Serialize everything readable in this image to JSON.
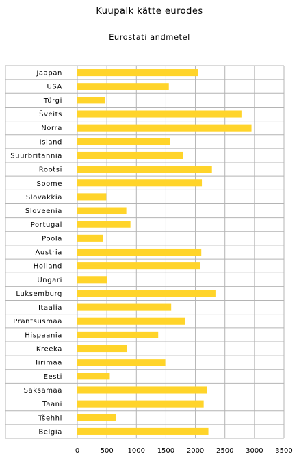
{
  "chart_data": {
    "type": "bar",
    "orientation": "horizontal",
    "title": "Kuupalk kätte eurodes",
    "subtitle": "Eurostati andmetel",
    "xlabel": "",
    "ylabel": "",
    "xlim": [
      0,
      3500
    ],
    "xticks": [
      0,
      500,
      1000,
      1500,
      2000,
      2500,
      3000,
      3500
    ],
    "grid": true,
    "legend": "none",
    "bar_color": "#FFD42A",
    "categories": [
      "Jaapan",
      "USA",
      "Türgi",
      "Šveits",
      "Norra",
      "Island",
      "Suurbritannia",
      "Rootsi",
      "Soome",
      "Slovakkia",
      "Sloveenia",
      "Portugal",
      "Poola",
      "Austria",
      "Holland",
      "Ungari",
      "Luksemburg",
      "Itaalia",
      "Prantsusmaa",
      "Hispaania",
      "Kreeka",
      "Iirimaa",
      "Eesti",
      "Saksamaa",
      "Taani",
      "Tšehhi",
      "Belgia"
    ],
    "values": [
      2050,
      1550,
      470,
      2780,
      2950,
      1570,
      1790,
      2280,
      2110,
      490,
      830,
      900,
      440,
      2100,
      2080,
      500,
      2340,
      1590,
      1830,
      1370,
      840,
      1490,
      550,
      2200,
      2140,
      650,
      2220
    ]
  }
}
